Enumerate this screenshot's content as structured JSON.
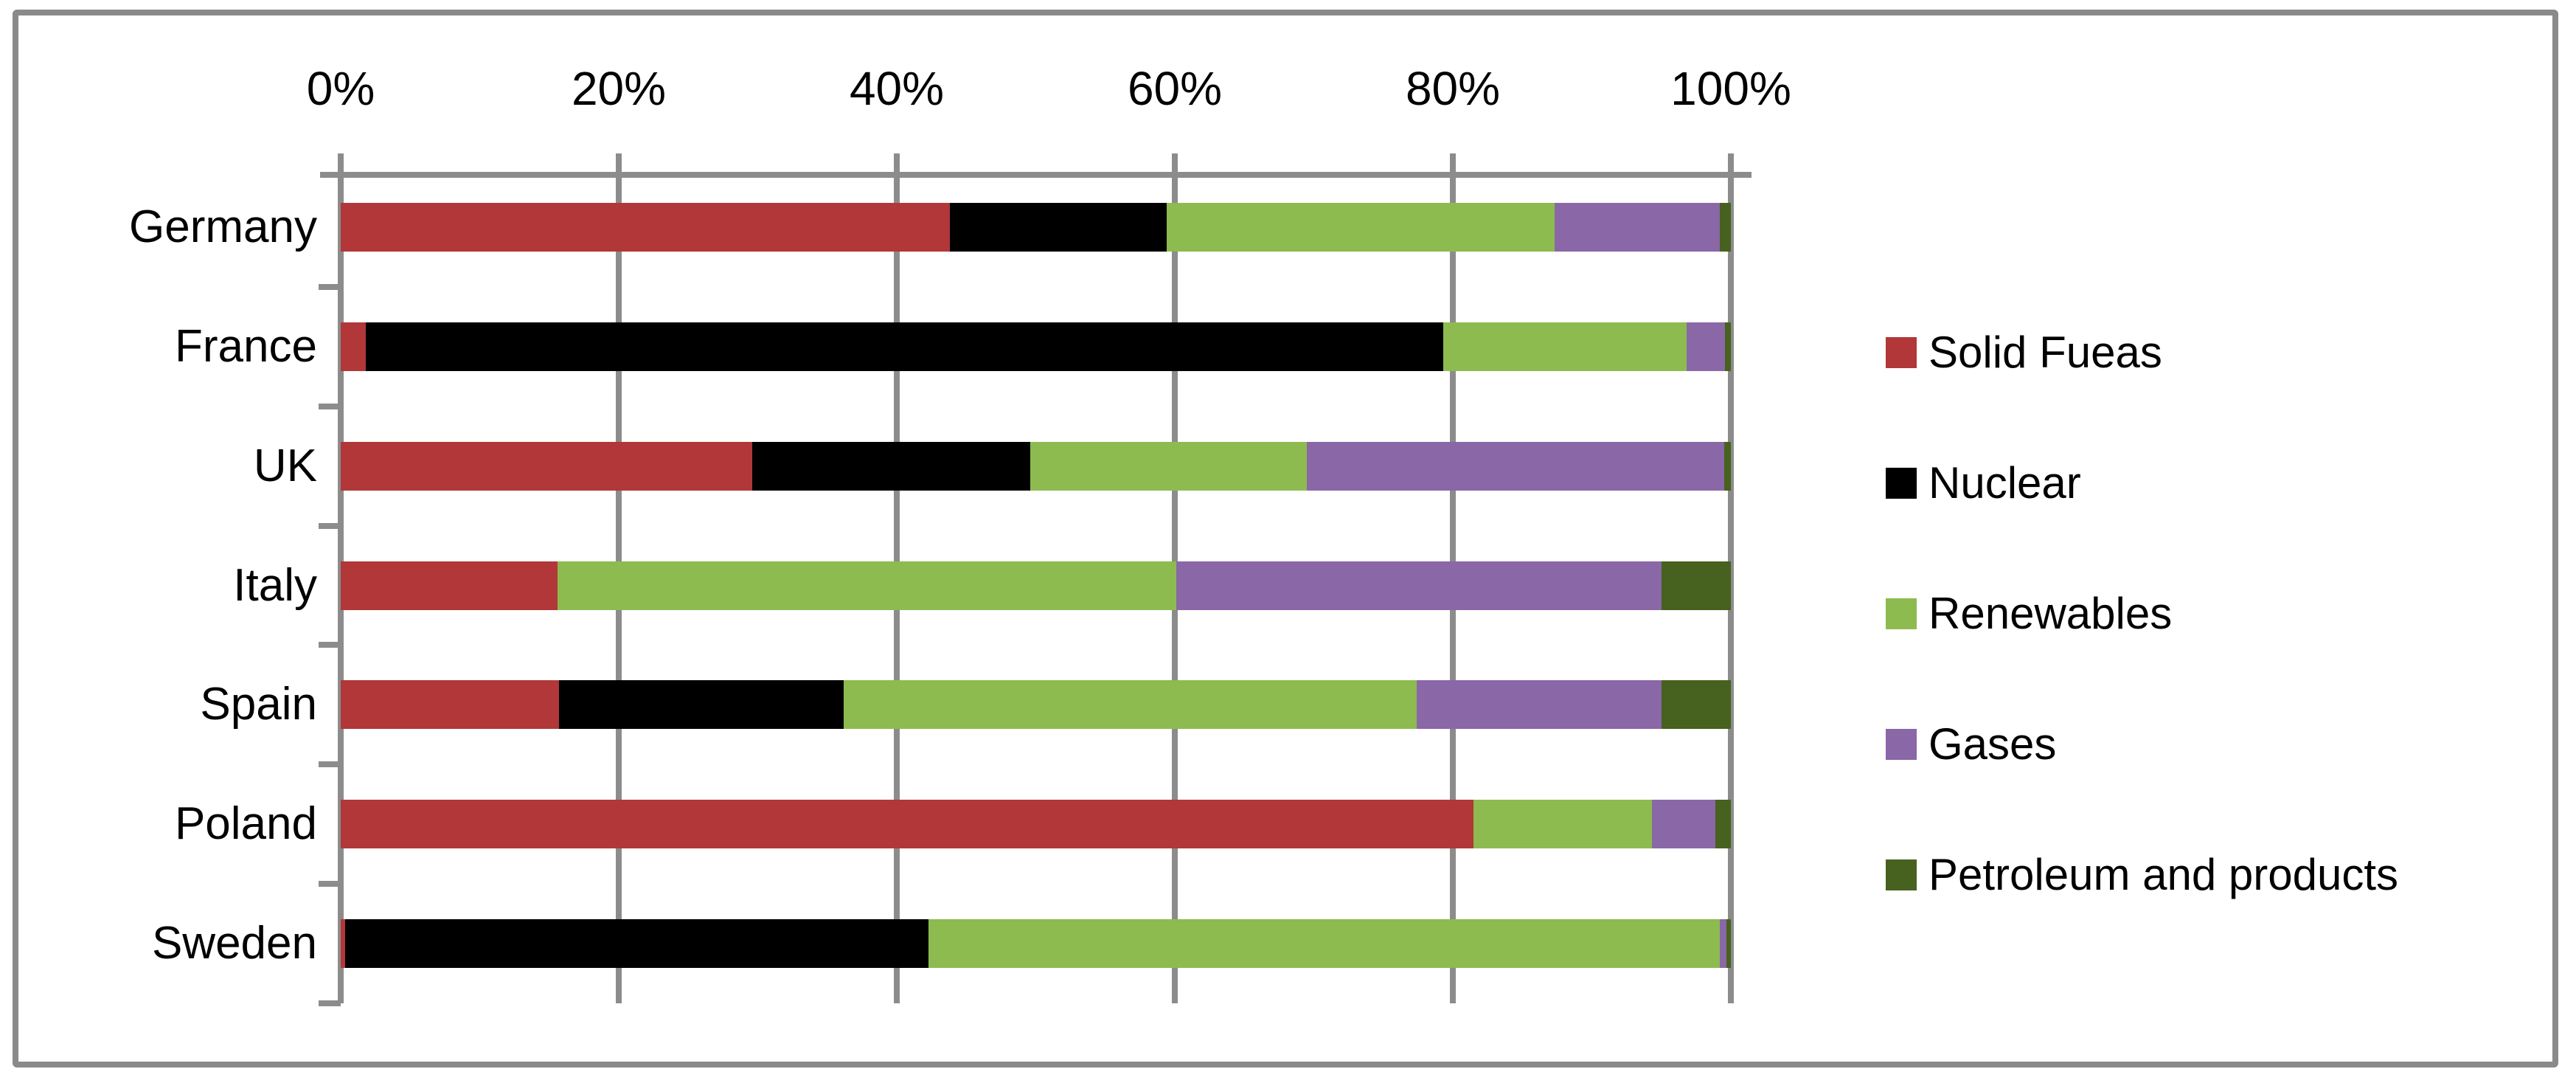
{
  "chart_data": {
    "type": "bar",
    "orientation": "horizontal",
    "stacked": true,
    "units": "%",
    "title": "",
    "xlabel": "",
    "ylabel": "",
    "categories": [
      "Germany",
      "France",
      "UK",
      "Italy",
      "Spain",
      "Poland",
      "Sweden"
    ],
    "series": [
      {
        "name": "Solid Fueas",
        "color": "#B13738",
        "values": [
          43.8,
          1.8,
          29.6,
          15.6,
          15.7,
          81.5,
          0.3
        ]
      },
      {
        "name": "Nuclear",
        "color": "#000000",
        "values": [
          15.6,
          77.5,
          20.0,
          0,
          20.5,
          0,
          42.0
        ]
      },
      {
        "name": "Renewables",
        "color": "#8DBB4F",
        "values": [
          27.9,
          17.5,
          19.9,
          44.5,
          41.2,
          12.8,
          56.9
        ]
      },
      {
        "name": "Gases",
        "color": "#8A67A7",
        "values": [
          11.9,
          2.8,
          30.0,
          34.9,
          17.6,
          4.6,
          0.5
        ]
      },
      {
        "name": "Petroleum and products",
        "color": "#47611E",
        "values": [
          0.8,
          0.4,
          0.5,
          5.0,
          5.0,
          1.1,
          0.3
        ]
      }
    ],
    "x_axis": {
      "position": "top",
      "min": 0,
      "max": 100,
      "tick_labels": [
        "0%",
        "20%",
        "40%",
        "60%",
        "80%",
        "100%"
      ]
    },
    "grid": true,
    "legend_position": "right",
    "style": {
      "grid_color": "#8C8C8C",
      "axis_color": "#8C8C8C",
      "border_color": "#8A8A8A",
      "background": "#FFFFFF",
      "text_color": "#000000"
    }
  }
}
